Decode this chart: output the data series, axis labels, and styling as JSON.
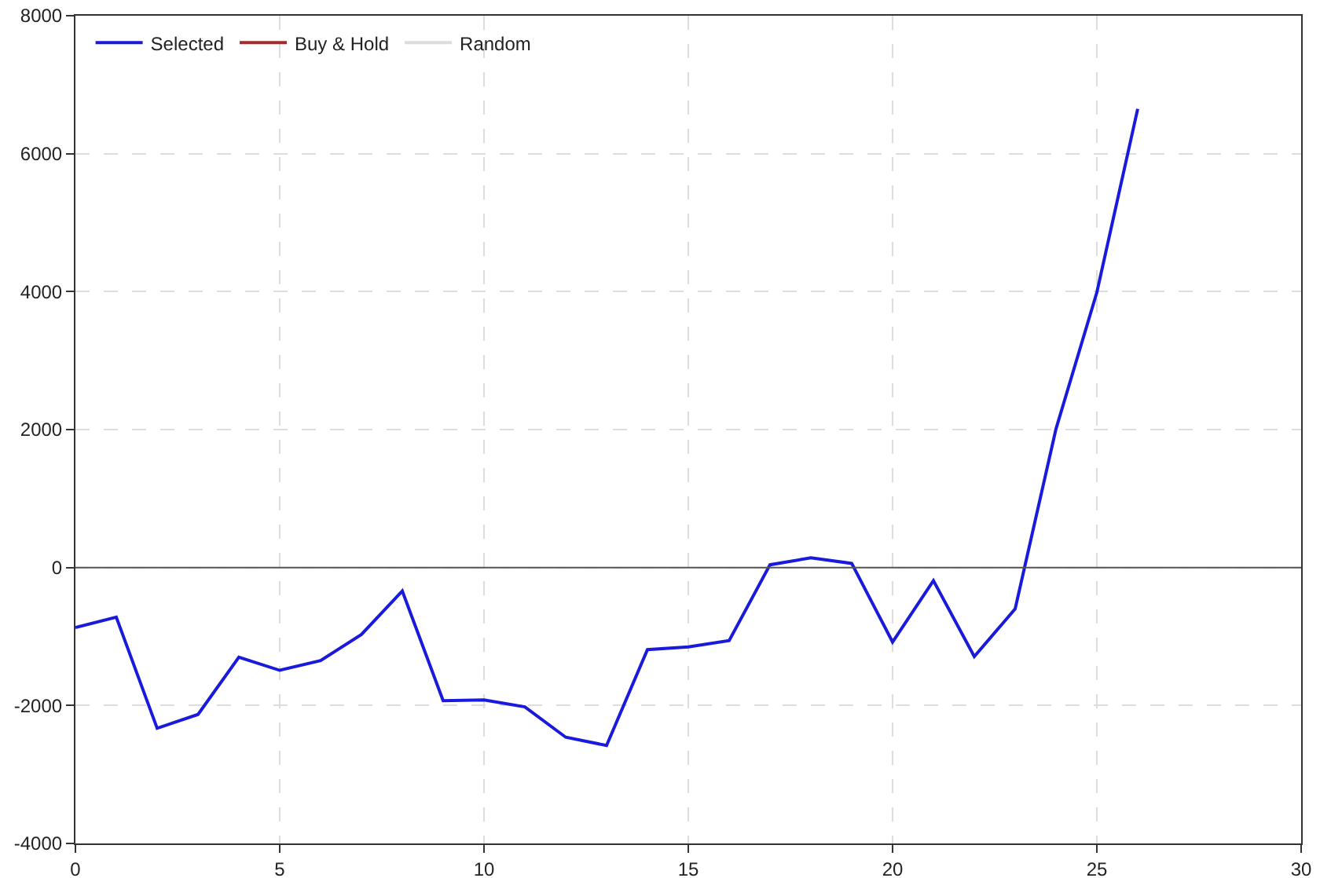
{
  "chart_data": {
    "type": "line",
    "x": [
      0,
      1,
      2,
      3,
      4,
      5,
      6,
      7,
      8,
      9,
      10,
      11,
      12,
      13,
      14,
      15,
      16,
      17,
      18,
      19,
      20,
      21,
      22,
      23,
      24,
      25,
      26
    ],
    "series": [
      {
        "name": "Selected",
        "color": "#1a1adc",
        "values": [
          -870,
          -720,
          -2330,
          -2130,
          -1300,
          -1490,
          -1350,
          -970,
          -340,
          -1930,
          -1920,
          -2020,
          -2460,
          -2580,
          -1190,
          -1150,
          -1060,
          40,
          140,
          60,
          -1080,
          -190,
          -1290,
          -600,
          2010,
          3990,
          6650
        ]
      },
      {
        "name": "Buy & Hold",
        "color": "#a52a2a",
        "values": [
          null,
          null,
          null,
          null,
          null,
          null,
          null,
          null,
          null,
          null,
          null,
          null,
          null,
          null,
          null,
          null,
          null,
          null,
          null,
          null,
          null,
          null,
          null,
          null,
          null,
          null,
          null
        ]
      },
      {
        "name": "Random",
        "color": "#dcdcdc",
        "values": [
          null,
          null,
          null,
          null,
          null,
          null,
          null,
          null,
          null,
          null,
          null,
          null,
          null,
          null,
          null,
          null,
          null,
          null,
          null,
          null,
          null,
          null,
          null,
          null,
          null,
          null,
          null
        ]
      }
    ],
    "xlim": [
      0,
      30
    ],
    "xticks": [
      0,
      5,
      10,
      15,
      20,
      25,
      30
    ],
    "ylim": [
      -4000,
      8000
    ],
    "yticks": [
      -4000,
      -2000,
      0,
      2000,
      4000,
      6000,
      8000
    ],
    "grid": true,
    "legend": "top left",
    "ref_lines": [
      {
        "axis": "y",
        "value": 0,
        "color": "#555555"
      }
    ]
  }
}
